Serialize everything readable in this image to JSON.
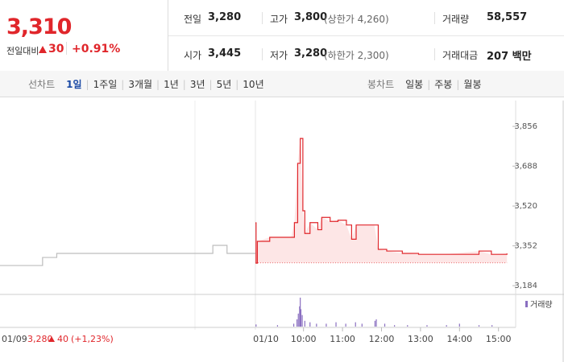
{
  "header": {
    "price": "3,310",
    "change_label": "전일대비",
    "change": "30",
    "change_pct": "+0.91%",
    "stats": [
      {
        "label": "전일",
        "value": "3,280"
      },
      {
        "label": "고가",
        "value": "3,800",
        "note": "(상한가 4,260)"
      },
      {
        "label": "거래량",
        "value": "58,557"
      },
      {
        "label": "시가",
        "value": "3,445"
      },
      {
        "label": "저가",
        "value": "3,280",
        "note": "(하한가 2,300)"
      },
      {
        "label": "거래대금",
        "value": "207 백만"
      }
    ]
  },
  "tabs": {
    "line_label": "선차트",
    "line_periods": [
      "1일",
      "1주일",
      "3개월",
      "1년",
      "3년",
      "5년",
      "10년"
    ],
    "candle_label": "봉차트",
    "candle_periods": [
      "일봉",
      "주봉",
      "월봉"
    ]
  },
  "chart_data": {
    "type": "line",
    "ylim": [
      3147,
      3965
    ],
    "yticks": [
      {
        "value": 3184,
        "label": "3,184"
      },
      {
        "value": 3352,
        "label": "3,352"
      },
      {
        "value": 3520,
        "label": "3,520"
      },
      {
        "value": 3688,
        "label": "3,688"
      },
      {
        "value": 3856,
        "label": "3,856"
      }
    ],
    "prev_day": {
      "label": "01/09",
      "close": "3,280",
      "change": "40",
      "change_pct": "(+1,23%)",
      "color": "#bdbdbd",
      "values": [
        3269,
        3269,
        3269,
        3303,
        3320,
        3320,
        3320,
        3320,
        3320,
        3320,
        3320,
        3320,
        3320,
        3320,
        3320,
        3354,
        3320,
        3320,
        3320
      ]
    },
    "today": {
      "label": "01/10",
      "color": "#e0262b",
      "fill": "#fde6e6",
      "base": 3280,
      "xlim": [
        -14,
        374
      ],
      "xticks": [
        {
          "value": 60,
          "label": "10:00"
        },
        {
          "value": 120,
          "label": "11:00"
        },
        {
          "value": 180,
          "label": "12:00"
        },
        {
          "value": 240,
          "label": "13:00"
        },
        {
          "value": 300,
          "label": "14:00"
        },
        {
          "value": 360,
          "label": "15:00"
        }
      ],
      "x": [
        -14,
        -13,
        -11,
        8,
        41,
        46,
        51,
        55,
        59,
        62,
        70,
        82,
        88,
        101,
        113,
        126,
        134,
        141,
        169,
        175,
        188,
        212,
        237,
        274,
        330,
        349,
        373
      ],
      "values": [
        3449,
        3279,
        3371,
        3388,
        3388,
        3450,
        3700,
        3805,
        3500,
        3404,
        3450,
        3420,
        3472,
        3455,
        3460,
        3440,
        3380,
        3440,
        3440,
        3337,
        3330,
        3320,
        3316,
        3316,
        3330,
        3316,
        3320
      ]
    },
    "volume": {
      "name": "거래량",
      "color": "#8a6fc1",
      "x": [
        -13,
        20,
        45,
        50,
        52,
        54,
        55,
        56,
        58,
        62,
        70,
        80,
        95,
        110,
        125,
        140,
        150,
        170,
        172,
        185,
        200,
        220,
        250,
        280,
        300,
        330,
        350
      ],
      "values": [
        1.5,
        1,
        2,
        5,
        9,
        14,
        20,
        12,
        8,
        4,
        3,
        2,
        2,
        3,
        2,
        3,
        2,
        4,
        5,
        2,
        1,
        1,
        1,
        1,
        2,
        1,
        1
      ]
    }
  }
}
